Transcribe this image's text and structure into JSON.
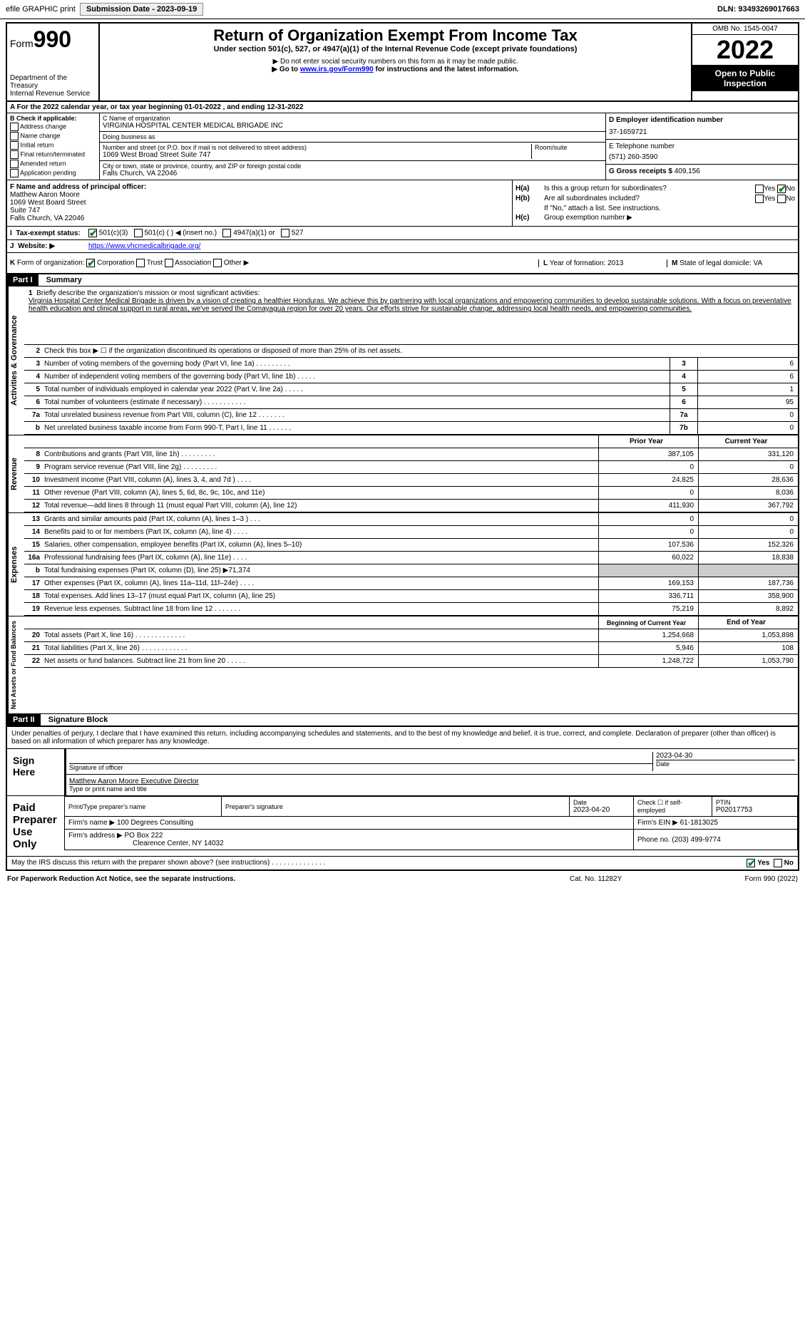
{
  "topbar": {
    "efile": "efile GRAPHIC print",
    "submission_label": "Submission Date - 2023-09-19",
    "dln": "DLN: 93493269017663"
  },
  "header": {
    "form_prefix": "Form",
    "form_num": "990",
    "dept": "Department of the Treasury",
    "irs": "Internal Revenue Service",
    "title": "Return of Organization Exempt From Income Tax",
    "sub1": "Under section 501(c), 527, or 4947(a)(1) of the Internal Revenue Code (except private foundations)",
    "sub2": "▶ Do not enter social security numbers on this form as it may be made public.",
    "sub3_pre": "▶ Go to ",
    "sub3_link": "www.irs.gov/Form990",
    "sub3_post": " for instructions and the latest information.",
    "omb": "OMB No. 1545-0047",
    "year": "2022",
    "inspect": "Open to Public Inspection"
  },
  "lineA": "A  For the 2022 calendar year, or tax year beginning 01-01-2022   , and ending 12-31-2022",
  "boxB": {
    "title": "B Check if applicable:",
    "opts": [
      "Address change",
      "Name change",
      "Initial return",
      "Final return/terminated",
      "Amended return",
      "Application pending"
    ]
  },
  "boxC": {
    "name_lbl": "C Name of organization",
    "name": "VIRGINIA HOSPITAL CENTER MEDICAL BRIGADE INC",
    "dba_lbl": "Doing business as",
    "dba": "",
    "addr_lbl": "Number and street (or P.O. box if mail is not delivered to street address)",
    "room_lbl": "Room/suite",
    "addr": "1069 West Broad Street Suite 747",
    "city_lbl": "City or town, state or province, country, and ZIP or foreign postal code",
    "city": "Falls Church, VA  22046"
  },
  "boxD": {
    "lbl": "D Employer identification number",
    "val": "37-1659721"
  },
  "boxE": {
    "lbl": "E Telephone number",
    "val": "(571) 260-3590"
  },
  "boxG": {
    "lbl": "G Gross receipts $",
    "val": "409,156"
  },
  "boxF": {
    "lbl": "F  Name and address of principal officer:",
    "name": "Matthew Aaron Moore",
    "l1": "1069 West Board Street",
    "l2": "Suite 747",
    "l3": "Falls Church, VA  22046"
  },
  "boxH": {
    "a_lbl": "H(a)",
    "a_txt": "Is this a group return for subordinates?",
    "a_yes": "Yes",
    "a_no": "No",
    "b_lbl": "H(b)",
    "b_txt": "Are all subordinates included?",
    "b_yes": "Yes",
    "b_no": "No",
    "b_note": "If \"No,\" attach a list. See instructions.",
    "c_lbl": "H(c)",
    "c_txt": "Group exemption number ▶"
  },
  "lineI": {
    "lbl": "I",
    "txt": "Tax-exempt status:",
    "o1": "501(c)(3)",
    "o2": "501(c) (  ) ◀ (insert no.)",
    "o3": "4947(a)(1) or",
    "o4": "527"
  },
  "lineJ": {
    "lbl": "J",
    "txt": "Website: ▶",
    "val": "https://www.vhcmedicalbrigade.org/"
  },
  "lineK": {
    "lbl": "K",
    "txt": "Form of organization:",
    "o1": "Corporation",
    "o2": "Trust",
    "o3": "Association",
    "o4": "Other ▶"
  },
  "lineL": {
    "lbl": "L",
    "txt": "Year of formation: 2013"
  },
  "lineM": {
    "lbl": "M",
    "txt": "State of legal domicile: VA"
  },
  "partI": {
    "hdr": "Part I",
    "title": "Summary"
  },
  "mission": {
    "n": "1",
    "lbl": "Briefly describe the organization's mission or most significant activities:",
    "txt": "Virginia Hospital Center Medical Brigade is driven by a vision of creating a healthier Honduras. We achieve this by partnering with local organizations and empowering communities to develop sustainable solutions. With a focus on preventative health education and clinical support in rural areas, we've served the Comayagua region for over 20 years. Our efforts strive for sustainable change, addressing local health needs, and empowering communities."
  },
  "act_gov": "Activities & Governance",
  "lines_top": [
    {
      "n": "2",
      "t": "Check this box ▶ ☐ if the organization discontinued its operations or disposed of more than 25% of its net assets."
    },
    {
      "n": "3",
      "t": "Number of voting members of the governing body (Part VI, line 1a)  .  .  .  .  .  .  .  .  .",
      "bn": "3",
      "v": "6"
    },
    {
      "n": "4",
      "t": "Number of independent voting members of the governing body (Part VI, line 1b)  .  .  .  .  .",
      "bn": "4",
      "v": "6"
    },
    {
      "n": "5",
      "t": "Total number of individuals employed in calendar year 2022 (Part V, line 2a)  .  .  .  .  .",
      "bn": "5",
      "v": "1"
    },
    {
      "n": "6",
      "t": "Total number of volunteers (estimate if necessary)  .  .  .  .  .  .  .  .  .  .  .",
      "bn": "6",
      "v": "95"
    },
    {
      "n": "7a",
      "t": "Total unrelated business revenue from Part VIII, column (C), line 12  .  .  .  .  .  .  .",
      "bn": "7a",
      "v": "0"
    },
    {
      "n": "b",
      "t": "Net unrelated business taxable income from Form 990-T, Part I, line 11  .  .  .  .  .  .",
      "bn": "7b",
      "v": "0"
    }
  ],
  "col_hdr": {
    "prior": "Prior Year",
    "current": "Current Year"
  },
  "revenue_lbl": "Revenue",
  "revenue": [
    {
      "n": "8",
      "t": "Contributions and grants (Part VIII, line 1h)  .  .  .  .  .  .  .  .  .",
      "p": "387,105",
      "c": "331,120"
    },
    {
      "n": "9",
      "t": "Program service revenue (Part VIII, line 2g)  .  .  .  .  .  .  .  .  .",
      "p": "0",
      "c": "0"
    },
    {
      "n": "10",
      "t": "Investment income (Part VIII, column (A), lines 3, 4, and 7d )  .  .  .  .",
      "p": "24,825",
      "c": "28,636"
    },
    {
      "n": "11",
      "t": "Other revenue (Part VIII, column (A), lines 5, 6d, 8c, 9c, 10c, and 11e)",
      "p": "0",
      "c": "8,036"
    },
    {
      "n": "12",
      "t": "Total revenue—add lines 8 through 11 (must equal Part VIII, column (A), line 12)",
      "p": "411,930",
      "c": "367,792"
    }
  ],
  "expenses_lbl": "Expenses",
  "expenses": [
    {
      "n": "13",
      "t": "Grants and similar amounts paid (Part IX, column (A), lines 1–3 )  .  .  .",
      "p": "0",
      "c": "0"
    },
    {
      "n": "14",
      "t": "Benefits paid to or for members (Part IX, column (A), line 4)  .  .  .  .",
      "p": "0",
      "c": "0"
    },
    {
      "n": "15",
      "t": "Salaries, other compensation, employee benefits (Part IX, column (A), lines 5–10)",
      "p": "107,536",
      "c": "152,326"
    },
    {
      "n": "16a",
      "t": "Professional fundraising fees (Part IX, column (A), line 11e)  .  .  .  .",
      "p": "60,022",
      "c": "18,838"
    },
    {
      "n": "b",
      "t": "Total fundraising expenses (Part IX, column (D), line 25) ▶71,374",
      "p": "",
      "c": "",
      "shaded": true
    },
    {
      "n": "17",
      "t": "Other expenses (Part IX, column (A), lines 11a–11d, 11f–24e)  .  .  .  .",
      "p": "169,153",
      "c": "187,736"
    },
    {
      "n": "18",
      "t": "Total expenses. Add lines 13–17 (must equal Part IX, column (A), line 25)",
      "p": "336,711",
      "c": "358,900"
    },
    {
      "n": "19",
      "t": "Revenue less expenses. Subtract line 18 from line 12  .  .  .  .  .  .  .",
      "p": "75,219",
      "c": "8,892"
    }
  ],
  "net_lbl": "Net Assets or Fund Balances",
  "net_hdr": {
    "b": "Beginning of Current Year",
    "e": "End of Year"
  },
  "net": [
    {
      "n": "20",
      "t": "Total assets (Part X, line 16)  .  .  .  .  .  .  .  .  .  .  .  .  .",
      "p": "1,254,668",
      "c": "1,053,898"
    },
    {
      "n": "21",
      "t": "Total liabilities (Part X, line 26)  .  .  .  .  .  .  .  .  .  .  .  .",
      "p": "5,946",
      "c": "108"
    },
    {
      "n": "22",
      "t": "Net assets or fund balances. Subtract line 21 from line 20  .  .  .  .  .",
      "p": "1,248,722",
      "c": "1,053,790"
    }
  ],
  "partII": {
    "hdr": "Part II",
    "title": "Signature Block"
  },
  "perjury": "Under penalties of perjury, I declare that I have examined this return, including accompanying schedules and statements, and to the best of my knowledge and belief, it is true, correct, and complete. Declaration of preparer (other than officer) is based on all information of which preparer has any knowledge.",
  "sign": {
    "here": "Sign Here",
    "sig_lbl": "Signature of officer",
    "date_lbl": "Date",
    "date": "2023-04-30",
    "name": "Matthew Aaron Moore  Executive Director",
    "name_lbl": "Type or print name and title"
  },
  "paid": {
    "here": "Paid Preparer Use Only",
    "h1": "Print/Type preparer's name",
    "h2": "Preparer's signature",
    "h3": "Date",
    "h4": "Check ☐ if self-employed",
    "h5": "PTIN",
    "date": "2023-04-20",
    "ptin": "P02017753",
    "firm_lbl": "Firm's name   ▶",
    "firm": "100 Degrees Consulting",
    "ein_lbl": "Firm's EIN ▶",
    "ein": "61-1813025",
    "addr_lbl": "Firm's address ▶",
    "addr1": "PO Box 222",
    "addr2": "Clearence Center, NY  14032",
    "phone_lbl": "Phone no.",
    "phone": "(203) 499-9774"
  },
  "footer": {
    "q": "May the IRS discuss this return with the preparer shown above? (see instructions)  .  .  .  .  .  .  .  .  .  .  .  .  .  .",
    "yes": "Yes",
    "no": "No",
    "pra": "For Paperwork Reduction Act Notice, see the separate instructions.",
    "cat": "Cat. No. 11282Y",
    "form": "Form 990 (2022)"
  }
}
